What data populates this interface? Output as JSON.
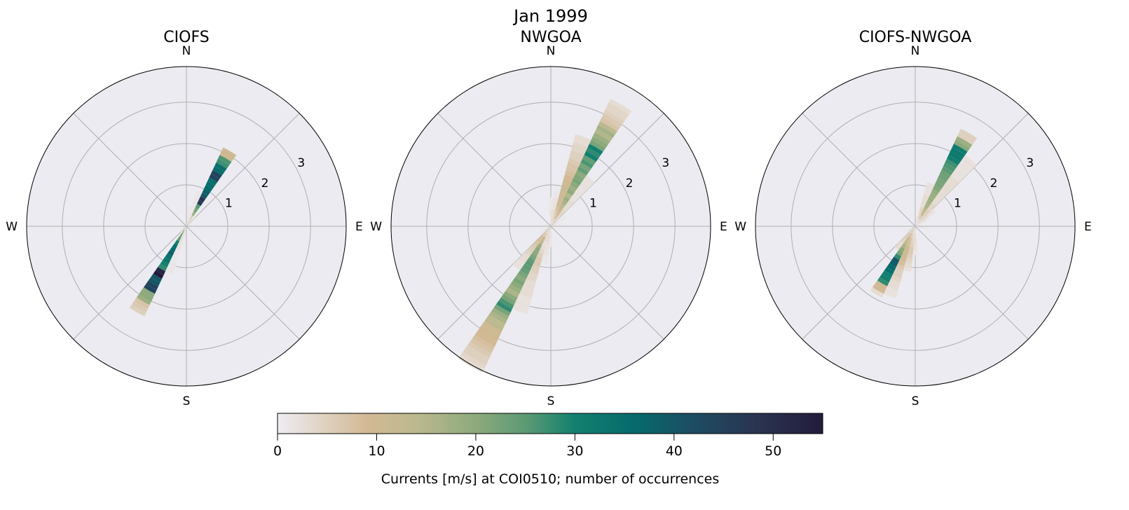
{
  "chart_data": [
    {
      "type": "polar-histogram",
      "suptitle": "Jan 1999",
      "title": "CIOFS",
      "direction_bin_deg": 10,
      "speed_bin": 0.1,
      "rlim": [
        0,
        3.86
      ],
      "rticks": [
        "1",
        "2",
        "3"
      ],
      "cardinal_labels": {
        "N": "N",
        "E": "E",
        "S": "S",
        "W": "W"
      },
      "grid": true,
      "sectors": [
        {
          "dir": 30,
          "counts": [
            3,
            4,
            6,
            18,
            22,
            25,
            47,
            48,
            40,
            38,
            36,
            35,
            34,
            44,
            44,
            35,
            34,
            27,
            26,
            10,
            10
          ]
        },
        {
          "dir": 20,
          "counts": [
            2,
            2,
            1,
            1,
            1,
            1,
            1,
            1,
            1
          ]
        },
        {
          "dir": 10,
          "counts": [
            1,
            1,
            1,
            1,
            1
          ]
        },
        {
          "dir": 40,
          "counts": [
            3,
            2,
            1
          ]
        },
        {
          "dir": 210,
          "counts": [
            4,
            20,
            22,
            25,
            30,
            35,
            36,
            38,
            34,
            33,
            30,
            28,
            52,
            55,
            40,
            40,
            44,
            44,
            20,
            20,
            18,
            7,
            6,
            5
          ]
        },
        {
          "dir": 200,
          "counts": [
            1,
            2,
            2,
            2,
            2,
            2,
            1,
            1,
            1,
            1,
            1,
            1
          ]
        },
        {
          "dir": 190,
          "counts": [
            1,
            1,
            1
          ]
        },
        {
          "dir": 220,
          "counts": [
            2,
            1
          ]
        }
      ]
    },
    {
      "type": "polar-histogram",
      "title": "NWGOA",
      "direction_bin_deg": 10,
      "speed_bin": 0.1,
      "rlim": [
        0,
        3.86
      ],
      "rticks": [
        "1",
        "2",
        "3"
      ],
      "cardinal_labels": {
        "N": "N",
        "E": "E",
        "S": "S",
        "W": "W"
      },
      "grid": true,
      "sectors": [
        {
          "dir": 30,
          "counts": [
            3,
            5,
            8,
            10,
            12,
            14,
            16,
            18,
            15,
            20,
            18,
            20,
            22,
            21,
            20,
            24,
            22,
            26,
            24,
            30,
            28,
            30,
            22,
            20,
            18,
            15,
            17,
            14,
            7,
            6,
            5,
            4,
            4,
            3
          ]
        },
        {
          "dir": 20,
          "counts": [
            3,
            4,
            5,
            6,
            8,
            9,
            9,
            10,
            10,
            11,
            10,
            10,
            9,
            8,
            7,
            7,
            6,
            5,
            5,
            4,
            4,
            3,
            3
          ]
        },
        {
          "dir": 40,
          "counts": [
            4,
            3,
            3,
            4,
            4,
            3,
            3,
            3,
            2,
            2,
            2,
            2,
            2,
            2,
            2
          ]
        },
        {
          "dir": 10,
          "counts": [
            2,
            3,
            3,
            3,
            2,
            2,
            2,
            1,
            1
          ]
        },
        {
          "dir": 0,
          "counts": [
            2,
            2,
            2,
            2,
            1,
            1,
            1
          ]
        },
        {
          "dir": 60,
          "counts": [
            2,
            2,
            1,
            1
          ]
        },
        {
          "dir": 80,
          "counts": [
            2,
            1,
            1
          ]
        },
        {
          "dir": 210,
          "counts": [
            3,
            4,
            6,
            12,
            14,
            18,
            20,
            20,
            22,
            24,
            25,
            25,
            24,
            22,
            20,
            22,
            20,
            18,
            16,
            20,
            22,
            26,
            28,
            22,
            18,
            16,
            14,
            14,
            10,
            10,
            9,
            9,
            8,
            7,
            6,
            5,
            5,
            4,
            3
          ]
        },
        {
          "dir": 200,
          "counts": [
            3,
            3,
            3,
            3,
            2,
            3,
            4,
            5,
            6,
            6,
            5,
            5,
            4,
            4,
            3,
            3,
            3,
            3,
            2,
            2,
            2,
            2
          ]
        },
        {
          "dir": 220,
          "counts": [
            3,
            4,
            6,
            8,
            8,
            7,
            6,
            5,
            4,
            3,
            3,
            2,
            2
          ]
        },
        {
          "dir": 190,
          "counts": [
            2,
            2,
            3,
            3,
            2,
            2,
            2,
            1,
            1
          ]
        },
        {
          "dir": 180,
          "counts": [
            2,
            2,
            2,
            1,
            1
          ]
        },
        {
          "dir": 240,
          "counts": [
            2,
            2,
            1
          ]
        }
      ]
    },
    {
      "type": "polar-histogram",
      "title": "CIOFS-NWGOA",
      "direction_bin_deg": 10,
      "speed_bin": 0.1,
      "rlim": [
        0,
        3.86
      ],
      "rticks": [
        "1",
        "2",
        "3"
      ],
      "cardinal_labels": {
        "N": "N",
        "E": "E",
        "S": "S",
        "W": "W"
      },
      "grid": true,
      "sectors": [
        {
          "dir": 30,
          "counts": [
            2,
            3,
            6,
            12,
            14,
            16,
            17,
            18,
            18,
            19,
            21,
            22,
            22,
            23,
            23,
            25,
            26,
            27,
            30,
            32,
            32,
            31,
            20,
            18,
            5,
            5
          ]
        },
        {
          "dir": 20,
          "counts": [
            2,
            3,
            4,
            4,
            4,
            3,
            3,
            3,
            2,
            2,
            2
          ]
        },
        {
          "dir": 40,
          "counts": [
            2,
            3,
            4,
            5,
            5,
            4,
            4,
            3,
            3,
            3,
            3,
            3,
            3,
            3,
            3,
            2,
            2,
            2,
            2,
            2,
            2
          ]
        },
        {
          "dir": 50,
          "counts": [
            2,
            2,
            3,
            3,
            2,
            2
          ]
        },
        {
          "dir": 60,
          "counts": [
            2,
            2,
            2,
            1
          ]
        },
        {
          "dir": 100,
          "counts": [
            2,
            2,
            1
          ]
        },
        {
          "dir": 210,
          "counts": [
            3,
            5,
            8,
            12,
            14,
            16,
            20,
            22,
            28,
            40,
            38,
            36,
            34,
            30,
            30,
            28,
            9,
            9,
            3
          ]
        },
        {
          "dir": 200,
          "counts": [
            3,
            4,
            6,
            8,
            8,
            10,
            10,
            10,
            9,
            8,
            6,
            5,
            5,
            4,
            3,
            3,
            2,
            2
          ]
        },
        {
          "dir": 190,
          "counts": [
            2,
            3,
            3,
            4,
            5,
            6,
            6,
            5,
            4,
            3,
            2
          ]
        },
        {
          "dir": 180,
          "counts": [
            2,
            2,
            3,
            3,
            2,
            2,
            1
          ]
        },
        {
          "dir": 220,
          "counts": [
            3,
            4,
            5,
            5,
            4,
            3,
            3
          ]
        },
        {
          "dir": 240,
          "counts": [
            2,
            2,
            1
          ]
        }
      ]
    }
  ],
  "colorbar": {
    "label": "Currents [m/s] at COI0510; number of occurrences",
    "range": [
      0,
      55
    ],
    "ticks": [
      "0",
      "10",
      "20",
      "30",
      "40",
      "50"
    ],
    "colormap": [
      {
        "v": 0,
        "c": "#eeedf2"
      },
      {
        "v": 9,
        "c": "#d2b994"
      },
      {
        "v": 14,
        "c": "#bcb98e"
      },
      {
        "v": 20,
        "c": "#8caa7c"
      },
      {
        "v": 25,
        "c": "#5c9a74"
      },
      {
        "v": 30,
        "c": "#12806f"
      },
      {
        "v": 36,
        "c": "#066a6c"
      },
      {
        "v": 42,
        "c": "#1d4c62"
      },
      {
        "v": 48,
        "c": "#2a3552"
      },
      {
        "v": 55,
        "c": "#231b3c"
      }
    ]
  },
  "colors": {
    "axes_bg": "#ebebf1",
    "grid": "#b0b0b0"
  }
}
